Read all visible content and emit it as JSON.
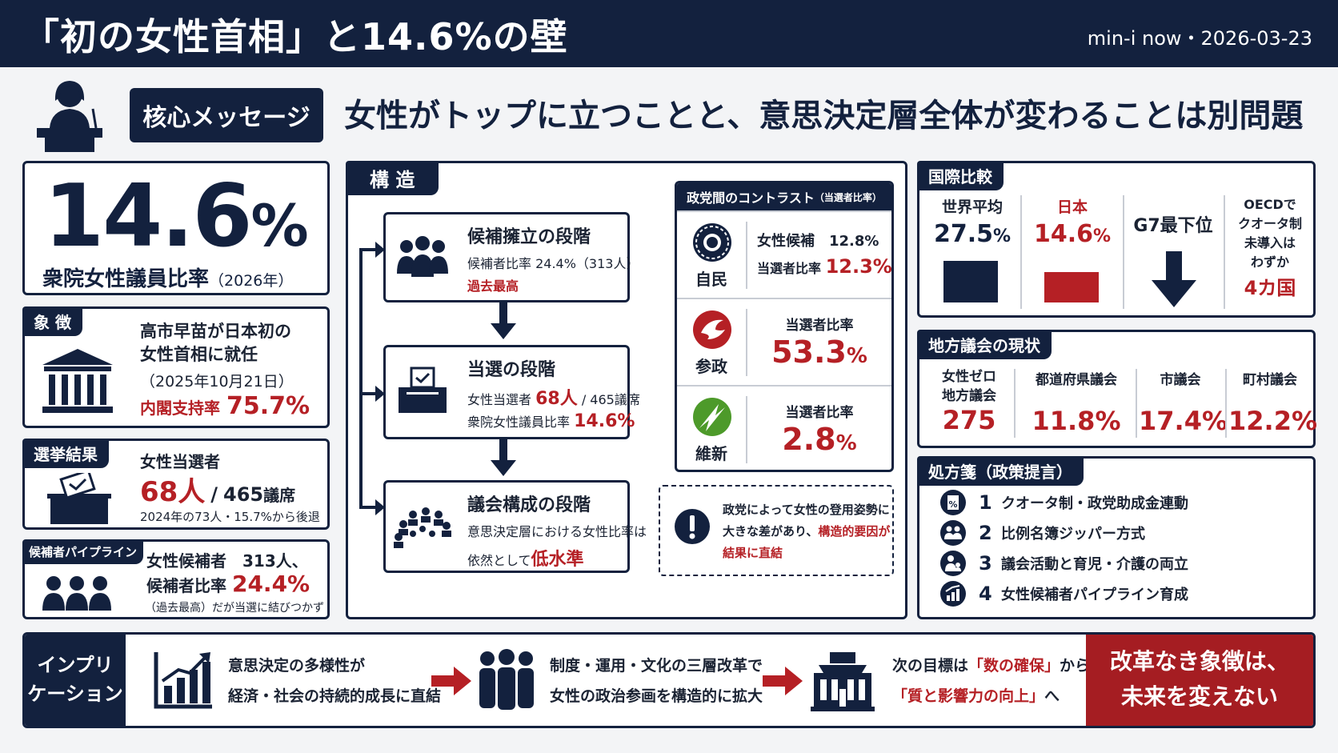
{
  "header": {
    "title": "「初の女性首相」と14.6%の壁",
    "meta": "min-i now・2026-03-23"
  },
  "core": {
    "tag": "核心メッセージ",
    "message": "女性がトップに立つことと、意思決定層全体が変わることは別問題"
  },
  "big_stat": {
    "value": "14.6",
    "unit": "%",
    "label": "衆院女性議員比率",
    "year": "（2026年）"
  },
  "symbol": {
    "tag": "象 徴",
    "line1": "高市早苗が日本初の",
    "line2": "女性首相に就任",
    "date": "（2025年10月21日）",
    "support_label": "内閣支持率",
    "support_value": "75.7%"
  },
  "election": {
    "tag": "選挙結果",
    "label": "女性当選者",
    "count": "68人",
    "slash": "/",
    "total": "465",
    "total_unit": "議席",
    "note": "2024年の73人・15.7%から後退"
  },
  "pipeline": {
    "tag": "候補者パイプライン",
    "line1": "女性候補者　313人、",
    "ratio_label": "候補者比率",
    "ratio_value": "24.4%",
    "note": "（過去最高）だが当選に結びつかず"
  },
  "structure": {
    "tag": "構 造",
    "stages": [
      {
        "title": "候補擁立の段階",
        "line1": "候補者比率 24.4%（313人）",
        "line2": "過去最高"
      },
      {
        "title": "当選の段階",
        "line1a": "女性当選者",
        "line1b": "68人",
        "line1c": "/ 465議席",
        "line2a": "衆院女性議員比率",
        "line2b": "14.6%"
      },
      {
        "title": "議会構成の段階",
        "line1": "意思決定層における女性比率は",
        "line2a": "依然として",
        "line2b": "低水準"
      }
    ]
  },
  "party": {
    "header": "政党間のコントラスト",
    "header_note": "（当選者比率）",
    "rows": [
      {
        "name": "自民",
        "cand_label": "女性候補",
        "cand_value": "12.8%",
        "elect_label": "当選者比率",
        "elect_value": "12.3%"
      },
      {
        "name": "参政",
        "elect_label": "当選者比率",
        "elect_value": "53.3",
        "elect_unit": "%"
      },
      {
        "name": "維新",
        "elect_label": "当選者比率",
        "elect_value": "2.8",
        "elect_unit": "%"
      }
    ]
  },
  "note": {
    "line1": "政党によって女性の登用姿勢に",
    "line2a": "大きな差があり、",
    "line2b": "構造的要因が",
    "line3": "結果に直結"
  },
  "international": {
    "tag": "国際比較",
    "world_label": "世界平均",
    "world_value": "27.5",
    "world_unit": "%",
    "world_ratio": 27.5,
    "japan_label": "日本",
    "japan_value": "14.6",
    "japan_unit": "%",
    "japan_ratio": 14.6,
    "g7_label": "G7最下位",
    "oecd_line1": "OECDで",
    "oecd_line2": "クオータ制",
    "oecd_line3": "未導入は",
    "oecd_line4": "わずか",
    "oecd_value": "4カ国",
    "colors": {
      "world": "#13213e",
      "japan": "#b52025"
    }
  },
  "local": {
    "tag": "地方議会の現状",
    "cols": [
      {
        "label1": "女性ゼロ",
        "label2": "地方議会",
        "value": "275"
      },
      {
        "label1": "都道府県議会",
        "value": "11.8%"
      },
      {
        "label1": "市議会",
        "value": "17.4%"
      },
      {
        "label1": "町村議会",
        "value": "12.2%"
      }
    ]
  },
  "policy": {
    "tag": "処方箋（政策提言）",
    "items": [
      {
        "num": "1",
        "text": "クオータ制・政党助成金連動",
        "icon": "document-percent-icon"
      },
      {
        "num": "2",
        "text": "比例名簿ジッパー方式",
        "icon": "people-pair-icon"
      },
      {
        "num": "3",
        "text": "議会活動と育児・介護の両立",
        "icon": "parent-child-icon"
      },
      {
        "num": "4",
        "text": "女性候補者パイプライン育成",
        "icon": "growth-chart-icon"
      }
    ]
  },
  "implication": {
    "side_line1": "インプリ",
    "side_line2": "ケーション",
    "item1_line1": "意思決定の多様性が",
    "item1_line2": "経済・社会の持続的成長に直結",
    "item2_line1": "制度・運用・文化の三層改革で",
    "item2_line2": "女性の政治参画を構造的に拡大",
    "item3_line1a": "次の目標は",
    "item3_line1b": "「数の確保」",
    "item3_line1c": "から",
    "item3_line2a": "「質と影響力の向上」",
    "item3_line2b": "へ",
    "final_line1": "改革なき象徴は、",
    "final_line2": "未来を変えない"
  }
}
